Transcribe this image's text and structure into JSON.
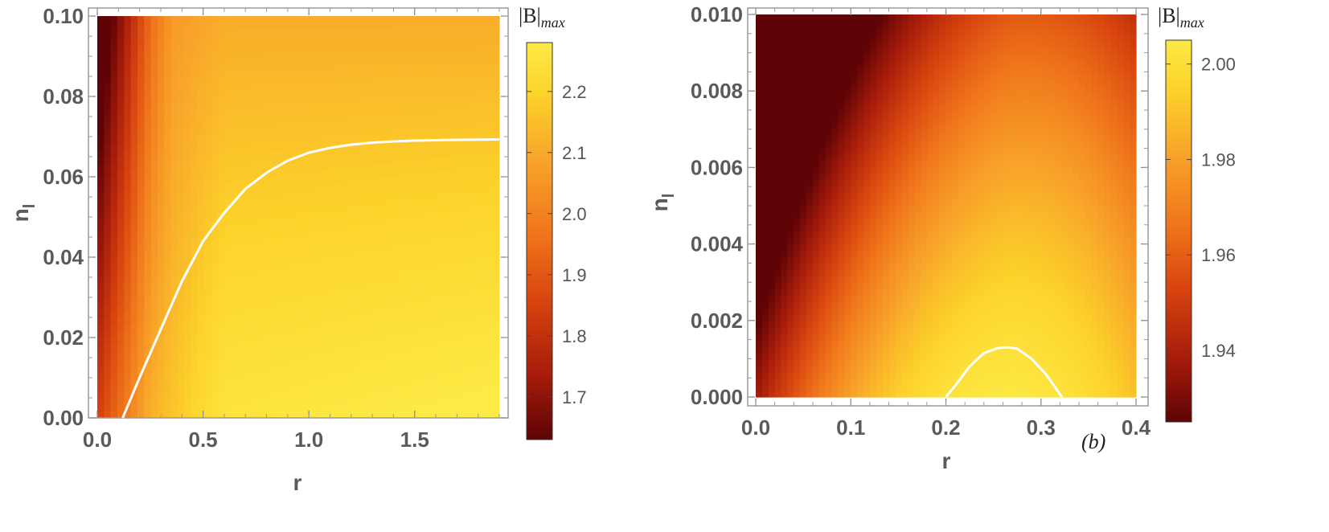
{
  "chart_data": [
    {
      "type": "heatmap",
      "title": "",
      "xlabel": "r",
      "ylabel": "n",
      "ylabel_subscript": "l",
      "xlim": [
        0,
        1.9
      ],
      "ylim": [
        0,
        0.1
      ],
      "x_ticks": [
        0.0,
        0.5,
        1.0,
        1.5
      ],
      "x_tick_labels": [
        "0.0",
        "0.5",
        "1.0",
        "1.5"
      ],
      "y_ticks": [
        0.0,
        0.02,
        0.04,
        0.06,
        0.08,
        0.1
      ],
      "y_tick_labels": [
        "0.00",
        "0.02",
        "0.04",
        "0.06",
        "0.08",
        "0.10"
      ],
      "colorbar": {
        "title": "|B|",
        "title_subscript": "max",
        "range": [
          1.63,
          2.28
        ],
        "ticks": [
          1.7,
          1.8,
          1.9,
          2.0,
          2.1,
          2.2
        ],
        "tick_labels": [
          "1.7",
          "1.8",
          "1.9",
          "2.0",
          "2.1",
          "2.2"
        ],
        "colors": [
          "#5e0306",
          "#a81d0b",
          "#d8450f",
          "#f0761b",
          "#f8a32a",
          "#fcd22a",
          "#fdea45"
        ]
      },
      "value_range_in_plot": [
        1.63,
        2.27
      ],
      "contour": {
        "color": "#ffffff",
        "points": [
          [
            0.12,
            0.0
          ],
          [
            0.2,
            0.01
          ],
          [
            0.3,
            0.022
          ],
          [
            0.4,
            0.034
          ],
          [
            0.5,
            0.044
          ],
          [
            0.6,
            0.051
          ],
          [
            0.7,
            0.057
          ],
          [
            0.8,
            0.061
          ],
          [
            0.9,
            0.064
          ],
          [
            1.0,
            0.066
          ],
          [
            1.1,
            0.0672
          ],
          [
            1.2,
            0.068
          ],
          [
            1.3,
            0.0685
          ],
          [
            1.4,
            0.0688
          ],
          [
            1.5,
            0.069
          ],
          [
            1.7,
            0.0692
          ],
          [
            1.9,
            0.0693
          ]
        ]
      },
      "panel_label": ""
    },
    {
      "type": "heatmap",
      "title": "",
      "xlabel": "r",
      "ylabel": "n",
      "ylabel_subscript": "l",
      "xlim": [
        0,
        0.4
      ],
      "ylim": [
        0,
        0.01
      ],
      "x_ticks": [
        0.0,
        0.1,
        0.2,
        0.3,
        0.4
      ],
      "x_tick_labels": [
        "0.0",
        "0.1",
        "0.2",
        "0.3",
        "0.4"
      ],
      "y_ticks": [
        0.0,
        0.002,
        0.004,
        0.006,
        0.008,
        0.01
      ],
      "y_tick_labels": [
        "0.000",
        "0.002",
        "0.004",
        "0.006",
        "0.008",
        "0.010"
      ],
      "colorbar": {
        "title": "|B|",
        "title_subscript": "max",
        "range": [
          1.925,
          2.005
        ],
        "ticks": [
          1.94,
          1.96,
          1.98,
          2.0
        ],
        "tick_labels": [
          "1.94",
          "1.96",
          "1.98",
          "2.00"
        ],
        "colors": [
          "#5e0306",
          "#a81d0b",
          "#d8450f",
          "#f0761b",
          "#f8a32a",
          "#fcd22a",
          "#fdea45"
        ]
      },
      "value_range_in_plot": [
        1.925,
        2.004
      ],
      "contour": {
        "color": "#ffffff",
        "points": [
          [
            0.2,
            0.0
          ],
          [
            0.21,
            0.0003
          ],
          [
            0.225,
            0.0008
          ],
          [
            0.24,
            0.00115
          ],
          [
            0.255,
            0.00128
          ],
          [
            0.265,
            0.0013
          ],
          [
            0.275,
            0.00126
          ],
          [
            0.29,
            0.001
          ],
          [
            0.305,
            0.0006
          ],
          [
            0.322,
            0.0
          ]
        ]
      },
      "panel_label": "(b)"
    }
  ]
}
